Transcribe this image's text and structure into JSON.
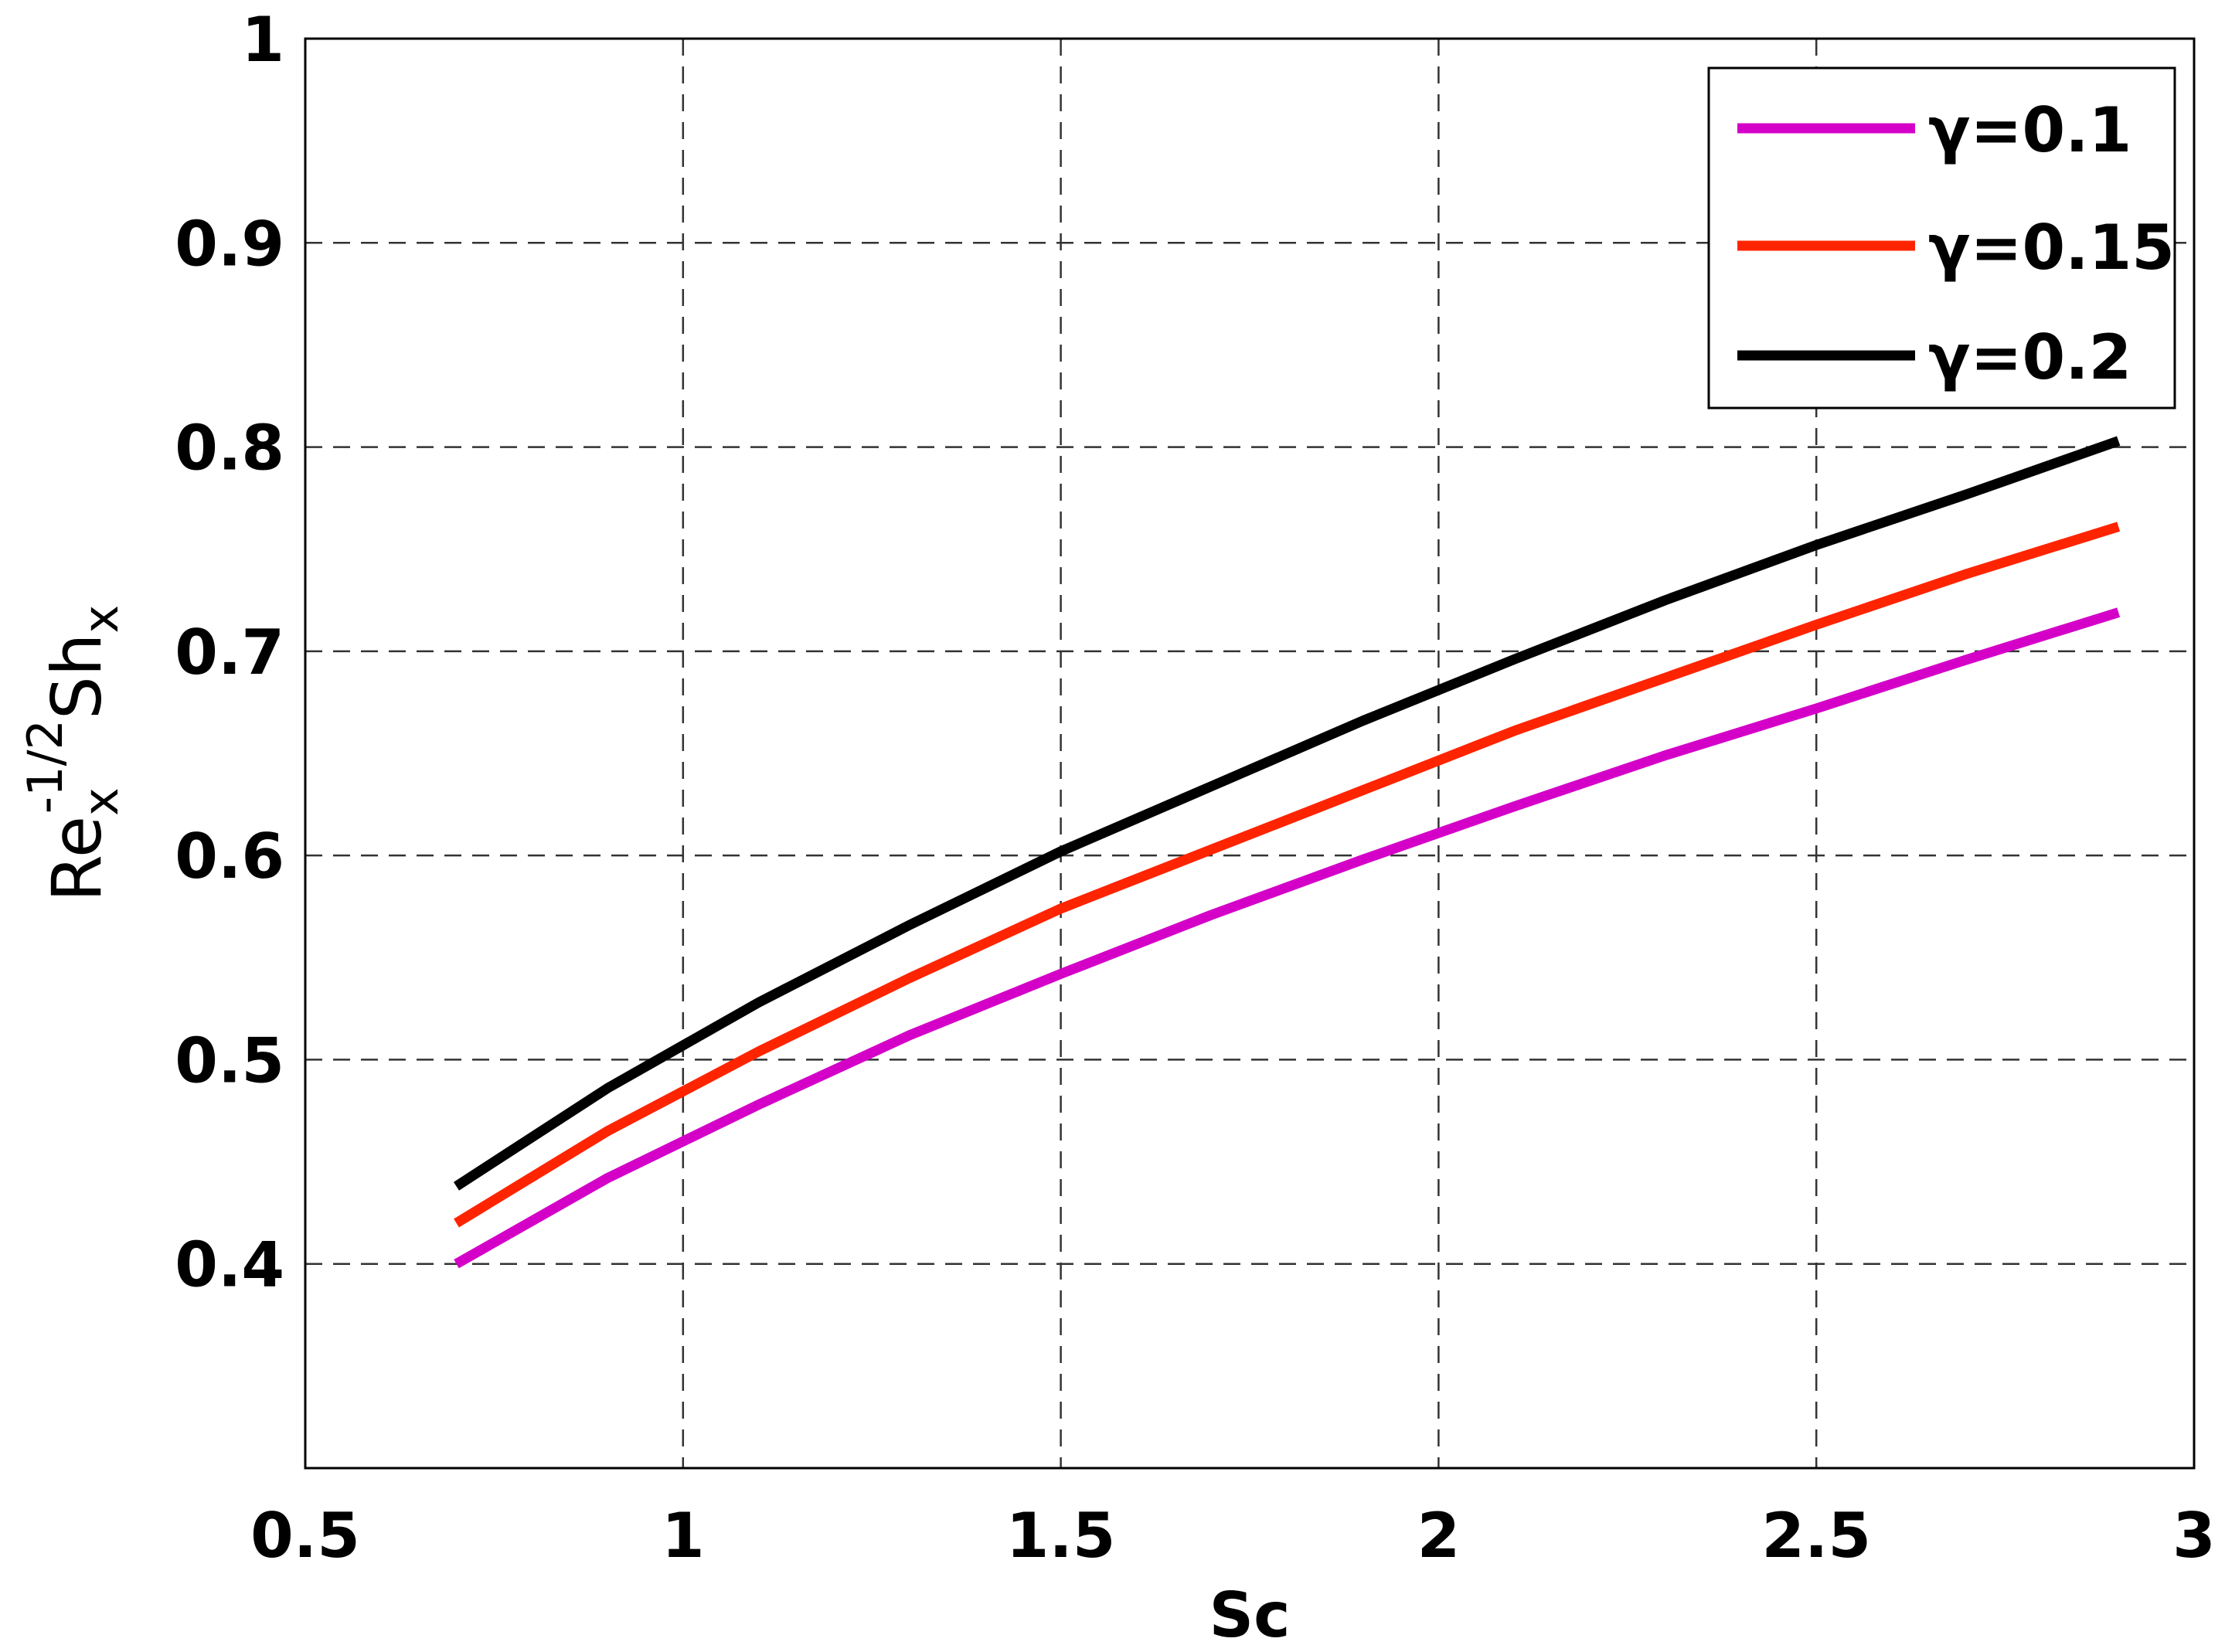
{
  "chart_data": {
    "type": "line",
    "xlabel": "Sc",
    "ylabel": {
      "base1": "Re",
      "sub1": "x",
      "sup1": "-1/2",
      "base2": "Sh",
      "sub2": "x"
    },
    "xlim": [
      0.5,
      3
    ],
    "ylim": [
      0.3,
      1
    ],
    "xticks": [
      "0.5",
      "1",
      "1.5",
      "2",
      "2.5",
      "3"
    ],
    "yticks": [
      "0.4",
      "0.5",
      "0.6",
      "0.7",
      "0.8",
      "0.9",
      "1"
    ],
    "xtick_values": [
      0.5,
      1,
      1.5,
      2,
      2.5,
      3
    ],
    "ytick_values": [
      0.4,
      0.5,
      0.6,
      0.7,
      0.8,
      0.9,
      1
    ],
    "grid": true,
    "legend_position": "top-right",
    "x": [
      0.7,
      0.9,
      1.1,
      1.3,
      1.5,
      1.7,
      1.9,
      2.1,
      2.3,
      2.5,
      2.7,
      2.9
    ],
    "series": [
      {
        "name": "γ=0.1",
        "color": "#d400c8",
        "values": [
          0.4,
          0.442,
          0.478,
          0.512,
          0.542,
          0.571,
          0.598,
          0.624,
          0.649,
          0.672,
          0.696,
          0.719
        ]
      },
      {
        "name": "γ=0.15",
        "color": "#ff2400",
        "values": [
          0.42,
          0.465,
          0.504,
          0.54,
          0.574,
          0.603,
          0.632,
          0.661,
          0.687,
          0.713,
          0.738,
          0.761
        ]
      },
      {
        "name": "γ=0.2",
        "color": "#000000",
        "values": [
          0.438,
          0.486,
          0.528,
          0.566,
          0.602,
          0.634,
          0.666,
          0.696,
          0.725,
          0.752,
          0.777,
          0.803
        ]
      }
    ]
  }
}
